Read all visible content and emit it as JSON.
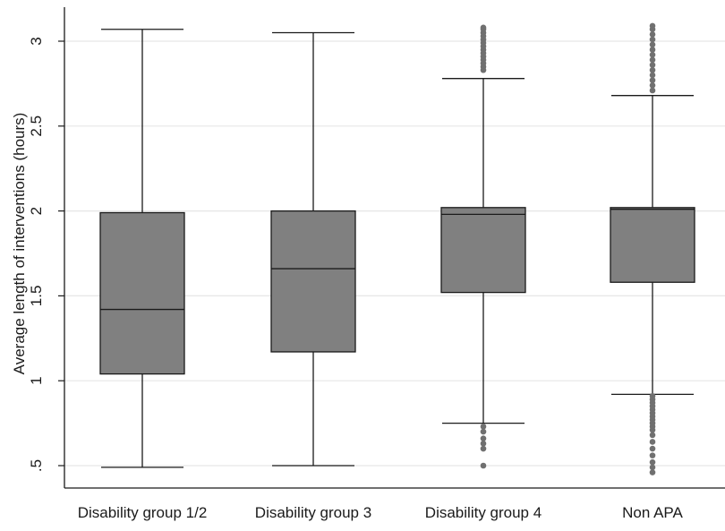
{
  "chart_data": {
    "type": "box",
    "ylabel": "Average length of interventions (hours)",
    "xlabel": "",
    "ylim": [
      0.42,
      3.2
    ],
    "yticks": [
      {
        "value": 0.5,
        "label": ".5"
      },
      {
        "value": 1,
        "label": "1"
      },
      {
        "value": 1.5,
        "label": "1.5"
      },
      {
        "value": 2,
        "label": "2"
      },
      {
        "value": 2.5,
        "label": "2.5"
      },
      {
        "value": 3,
        "label": "3"
      }
    ],
    "grid": true,
    "colors": {
      "box": "#808080",
      "line": "#1a1a1a",
      "outlier": "#707070",
      "grid": "#e6e6e6"
    },
    "categories": [
      "Disability group 1/2",
      "Disability group 3",
      "Disability group 4",
      "Non APA"
    ],
    "boxes": [
      {
        "name": "Disability group 1/2",
        "whisker_low": 0.49,
        "q1": 1.04,
        "median": 1.42,
        "q3": 1.99,
        "whisker_high": 3.07,
        "outliers": []
      },
      {
        "name": "Disability group 3",
        "whisker_low": 0.5,
        "q1": 1.17,
        "median": 1.66,
        "q3": 2.0,
        "whisker_high": 3.05,
        "outliers": []
      },
      {
        "name": "Disability group 4",
        "whisker_low": 0.75,
        "q1": 1.52,
        "median": 1.98,
        "q3": 2.02,
        "whisker_high": 2.78,
        "outliers": [
          0.5,
          0.6,
          0.63,
          0.66,
          0.7,
          0.73,
          2.83,
          2.85,
          2.87,
          2.89,
          2.91,
          2.93,
          2.95,
          2.97,
          2.99,
          3.01,
          3.03,
          3.05,
          3.07,
          3.08
        ]
      },
      {
        "name": "Non APA",
        "whisker_low": 0.92,
        "q1": 1.58,
        "median": 2.01,
        "q3": 2.02,
        "whisker_high": 2.68,
        "outliers": [
          0.46,
          0.49,
          0.52,
          0.56,
          0.6,
          0.64,
          0.68,
          0.71,
          0.73,
          0.75,
          0.77,
          0.79,
          0.81,
          0.83,
          0.85,
          0.87,
          0.89,
          0.91,
          2.71,
          2.74,
          2.77,
          2.8,
          2.83,
          2.86,
          2.89,
          2.92,
          2.95,
          2.98,
          3.01,
          3.04,
          3.07,
          3.09
        ]
      }
    ]
  }
}
